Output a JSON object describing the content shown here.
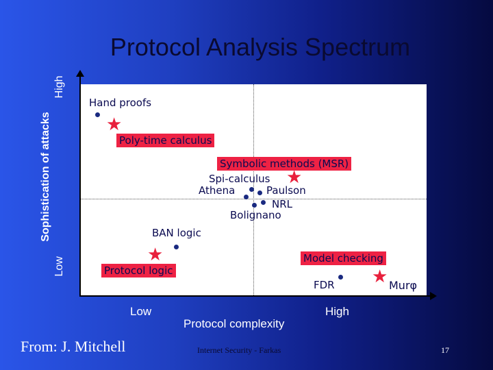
{
  "slide": {
    "title": "Protocol Analysis Spectrum",
    "y_axis": {
      "title": "Sophistication of attacks",
      "low": "Low",
      "high": "High"
    },
    "x_axis": {
      "title": "Protocol complexity",
      "low": "Low",
      "high": "High"
    },
    "source": "From: J. Mitchell",
    "footer": "Internet Security - Farkas",
    "page_number": "17"
  },
  "diagram": {
    "labels": {
      "hand_proofs": "Hand proofs",
      "poly_time": "Poly-time calculus",
      "symbolic": "Symbolic methods (MSR)",
      "spi": "Spi-calculus",
      "athena": "Athena",
      "paulson": "Paulson",
      "nrl": "NRL",
      "bolignano": "Bolignano",
      "ban": "BAN logic",
      "protocol_logic": "Protocol logic",
      "model_checking": "Model checking",
      "fdr": "FDR",
      "murphi": "Murφ"
    },
    "colors": {
      "highlight": "#ee2244",
      "star": "#e8203c",
      "dot": "#1a2a80"
    },
    "star_glyph": "★"
  }
}
